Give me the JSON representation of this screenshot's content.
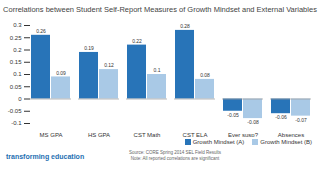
{
  "chart_data": {
    "type": "bar",
    "title": "Correlations between Student Self-Report Measures of Growth Mindset and External Variables",
    "categories": [
      "MS GPA",
      "HS GPA",
      "CST Math",
      "CST ELA",
      "Ever susp?",
      "Absences"
    ],
    "series": [
      {
        "name": "Growth Mindset (A)",
        "color": "#2874b8",
        "values": [
          0.26,
          0.19,
          0.22,
          0.28,
          -0.05,
          -0.06
        ]
      },
      {
        "name": "Growth Mindset (B)",
        "color": "#a9c9e6",
        "values": [
          0.09,
          0.12,
          0.1,
          0.08,
          -0.08,
          -0.07
        ]
      }
    ],
    "ylim": [
      -0.1,
      0.3
    ],
    "yticks": [
      -0.1,
      -0.05,
      0,
      0.05,
      0.1,
      0.15,
      0.2,
      0.25,
      0.3
    ],
    "grid": false,
    "data_labels": true,
    "legend": "bottom-right",
    "annotations": [
      "transforming education",
      "Source: CORE Spring 2014 SEL Field Results",
      "Note: All reported correlations are significant"
    ]
  }
}
